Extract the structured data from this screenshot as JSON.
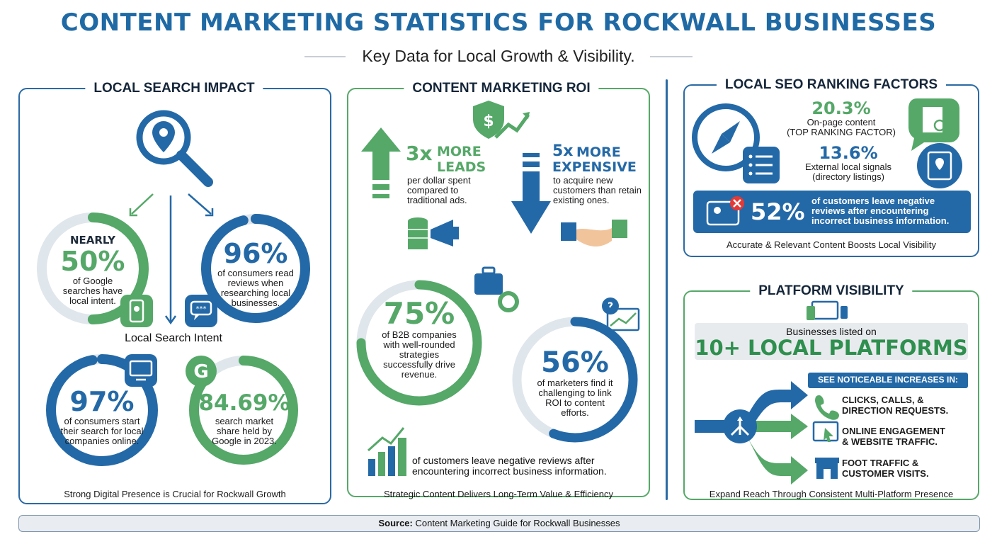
{
  "header": {
    "title": "CONTENT MARKETING STATISTICS FOR ROCKWALL BUSINESSES",
    "subtitle": "Key Data for Local Growth & Visibility."
  },
  "colors": {
    "blue": "#2469a7",
    "green": "#55a868",
    "dark": "#1f2d3d"
  },
  "local_search": {
    "title": "LOCAL SEARCH IMPACT",
    "center_label": "Local Search Intent",
    "stat1": {
      "prefix": "NEARLY",
      "value": "50%",
      "text": "of Google searches have local intent.",
      "icon": "phone-map-icon",
      "fill": 0.5
    },
    "stat2": {
      "value": "96%",
      "text": "of consumers read reviews when researching local businesses.",
      "icon": "review-chat-icon",
      "fill": 0.96
    },
    "stat3": {
      "value": "97%",
      "text": "of consumers start their search for local companies online.",
      "icon": "monitor-icon",
      "fill": 0.97
    },
    "stat4": {
      "value": "84.69%",
      "text": "search market share held by Google in 2023.",
      "icon": "google-icon",
      "fill": 0.8469
    },
    "footer": "Strong Digital Presence is Crucial for Rockwall Growth"
  },
  "roi": {
    "title": "CONTENT MARKETING ROI",
    "leads": {
      "headline_num": "3x",
      "headline_word1": "MORE",
      "headline_word2": "LEADS",
      "text": "per dollar spent compared to traditional ads."
    },
    "expensive": {
      "headline_num": "5x",
      "headline_word1": "MORE",
      "headline_word2": "EXPENSIVE",
      "text": "to acquire new customers than retain existing ones."
    },
    "stat75": {
      "value": "75%",
      "text": "of B2B companies with well-rounded strategies successfully drive revenue.",
      "fill": 0.75
    },
    "stat56": {
      "value": "56%",
      "text": "of marketers find it challenging to link ROI to content efforts.",
      "fill": 0.56
    },
    "bottom_text": "of customers leave negative reviews after encountering incorrect business information.",
    "footer": "Strategic Content Delivers Long-Term Value & Efficiency"
  },
  "seo": {
    "title": "LOCAL SEO RANKING FACTORS",
    "factor1": {
      "value": "20.3%",
      "line1": "On-page content",
      "line2": "(TOP RANKING FACTOR)"
    },
    "factor2": {
      "value": "13.6%",
      "line1": "External local signals",
      "line2": "(directory listings)"
    },
    "banner": {
      "value": "52%",
      "text": "of customers leave negative reviews after encountering incorrect business information."
    },
    "footer": "Accurate & Relevant Content Boosts Local Visibility"
  },
  "platform": {
    "title": "PLATFORM VISIBILITY",
    "listed": "Businesses listed on",
    "headline": "10+ LOCAL PLATFORMS",
    "increase_label": "SEE NOTICEABLE INCREASES IN:",
    "items": [
      {
        "line1": "CLICKS, CALLS, &",
        "line2": "DIRECTION REQUESTS.",
        "icon": "phone-call-icon"
      },
      {
        "line1": "ONLINE ENGAGEMENT",
        "line2": "& WEBSITE TRAFFIC.",
        "icon": "cursor-click-icon"
      },
      {
        "line1": "FOOT TRAFFIC &",
        "line2": "CUSTOMER VISITS.",
        "icon": "storefront-icon"
      }
    ],
    "footer": "Expand Reach Through Consistent Multi-Platform Presence"
  },
  "source": {
    "label": "Source:",
    "text": "Content Marketing Guide for Rockwall Businesses"
  }
}
